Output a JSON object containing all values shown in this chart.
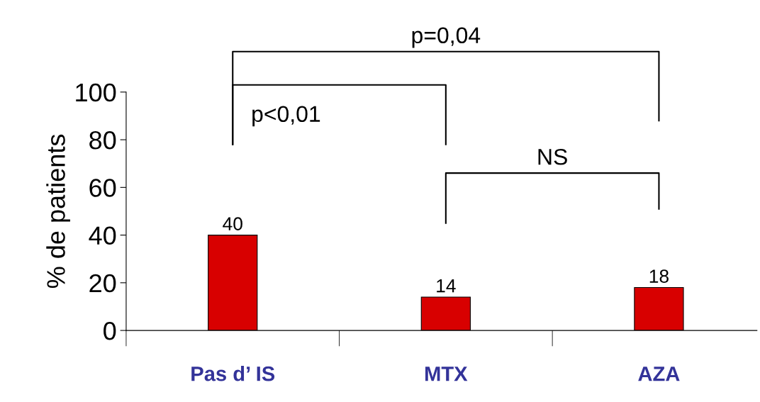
{
  "chart_data": {
    "type": "bar",
    "ylabel": "% de patients",
    "categories": [
      "Pas d’ IS",
      "MTX",
      "AZA"
    ],
    "values": [
      40,
      14,
      18
    ],
    "color": "#d80000",
    "data_labels": true,
    "ylim": [
      0,
      100
    ],
    "yticks": [
      0,
      20,
      40,
      60,
      80,
      100
    ],
    "grid": false,
    "legend": false,
    "annotations": [
      "p=0,04",
      "p<0,01",
      "NS"
    ]
  }
}
